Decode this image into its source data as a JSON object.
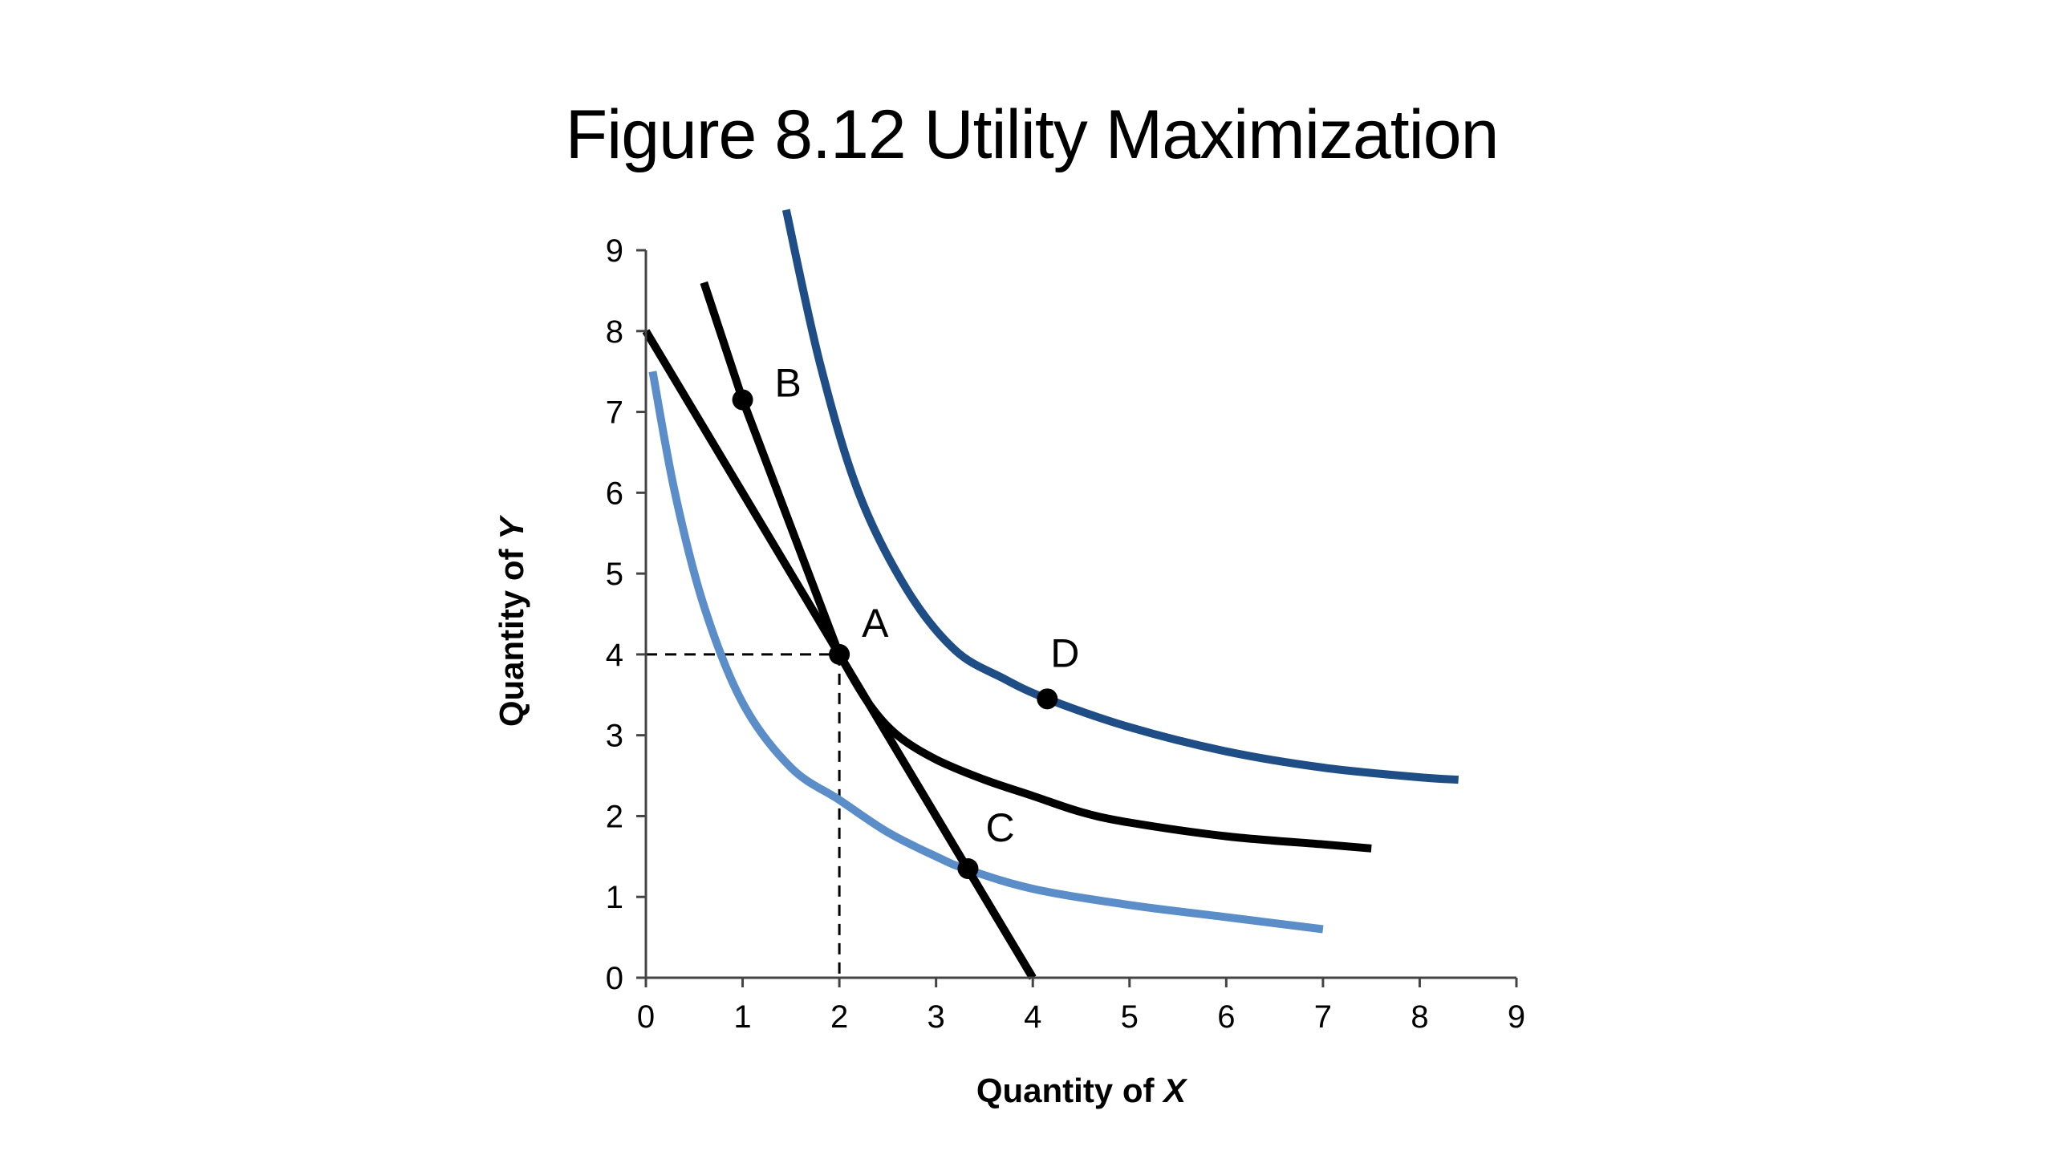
{
  "slide": {
    "title": "Figure 8.12 Utility Maximization"
  },
  "chart_data": {
    "type": "line",
    "xlabel": {
      "text": "Quantity of ",
      "var": "X"
    },
    "ylabel": {
      "text": "Quantity of ",
      "var": "Y"
    },
    "xlim": [
      0,
      9
    ],
    "ylim": [
      0,
      9
    ],
    "x_ticks": [
      "0",
      "1",
      "2",
      "3",
      "4",
      "5",
      "6",
      "7",
      "8",
      "9"
    ],
    "y_ticks": [
      "0",
      "1",
      "2",
      "3",
      "4",
      "5",
      "6",
      "7",
      "8",
      "9"
    ],
    "grid": false,
    "colors": {
      "axis": "#444444",
      "budget_line": "#000000",
      "steep_line": "#000000",
      "indifference_low": "#5b8ec9",
      "indifference_mid": "#000000",
      "indifference_high": "#1f4e87",
      "guide": "#000000",
      "point": "#000000"
    },
    "series": [
      {
        "id": "budget_line",
        "points": [
          [
            0,
            8
          ],
          [
            2,
            4
          ],
          [
            4,
            0
          ]
        ]
      },
      {
        "id": "steep_line",
        "points": [
          [
            0.6,
            8.6
          ],
          [
            1.0,
            7.15
          ],
          [
            2.0,
            4.0
          ],
          [
            4.0,
            0.0
          ]
        ]
      },
      {
        "id": "indifference_low",
        "points": [
          [
            0.07,
            7.5
          ],
          [
            0.3,
            6.0
          ],
          [
            0.6,
            4.6
          ],
          [
            1.0,
            3.4
          ],
          [
            1.5,
            2.6
          ],
          [
            2.0,
            2.2
          ],
          [
            2.5,
            1.8
          ],
          [
            3.0,
            1.5
          ],
          [
            3.3,
            1.35
          ],
          [
            4.0,
            1.1
          ],
          [
            5.0,
            0.9
          ],
          [
            6.0,
            0.75
          ],
          [
            7.0,
            0.6
          ]
        ]
      },
      {
        "id": "indifference_mid",
        "points": [
          [
            2.0,
            4.0
          ],
          [
            2.3,
            3.4
          ],
          [
            2.6,
            3.0
          ],
          [
            3.0,
            2.7
          ],
          [
            3.5,
            2.45
          ],
          [
            4.0,
            2.25
          ],
          [
            4.5,
            2.05
          ],
          [
            5.0,
            1.92
          ],
          [
            6.0,
            1.75
          ],
          [
            7.0,
            1.65
          ],
          [
            7.5,
            1.6
          ]
        ]
      },
      {
        "id": "indifference_high",
        "points": [
          [
            1.45,
            9.5
          ],
          [
            1.8,
            7.6
          ],
          [
            2.2,
            6.0
          ],
          [
            2.7,
            4.8
          ],
          [
            3.2,
            4.05
          ],
          [
            3.7,
            3.7
          ],
          [
            4.15,
            3.45
          ],
          [
            5.0,
            3.1
          ],
          [
            6.0,
            2.8
          ],
          [
            7.0,
            2.6
          ],
          [
            8.0,
            2.48
          ],
          [
            8.4,
            2.45
          ]
        ]
      }
    ],
    "guides": [
      {
        "id": "guide_horizontal",
        "from": [
          0,
          4
        ],
        "to": [
          2,
          4
        ]
      },
      {
        "id": "guide_vertical",
        "from": [
          2,
          4
        ],
        "to": [
          2,
          0
        ]
      }
    ],
    "points": [
      {
        "label": "A",
        "x": 2.0,
        "y": 4.0
      },
      {
        "label": "B",
        "x": 1.0,
        "y": 7.15
      },
      {
        "label": "C",
        "x": 3.33,
        "y": 1.35
      },
      {
        "label": "D",
        "x": 4.15,
        "y": 3.45
      }
    ]
  }
}
